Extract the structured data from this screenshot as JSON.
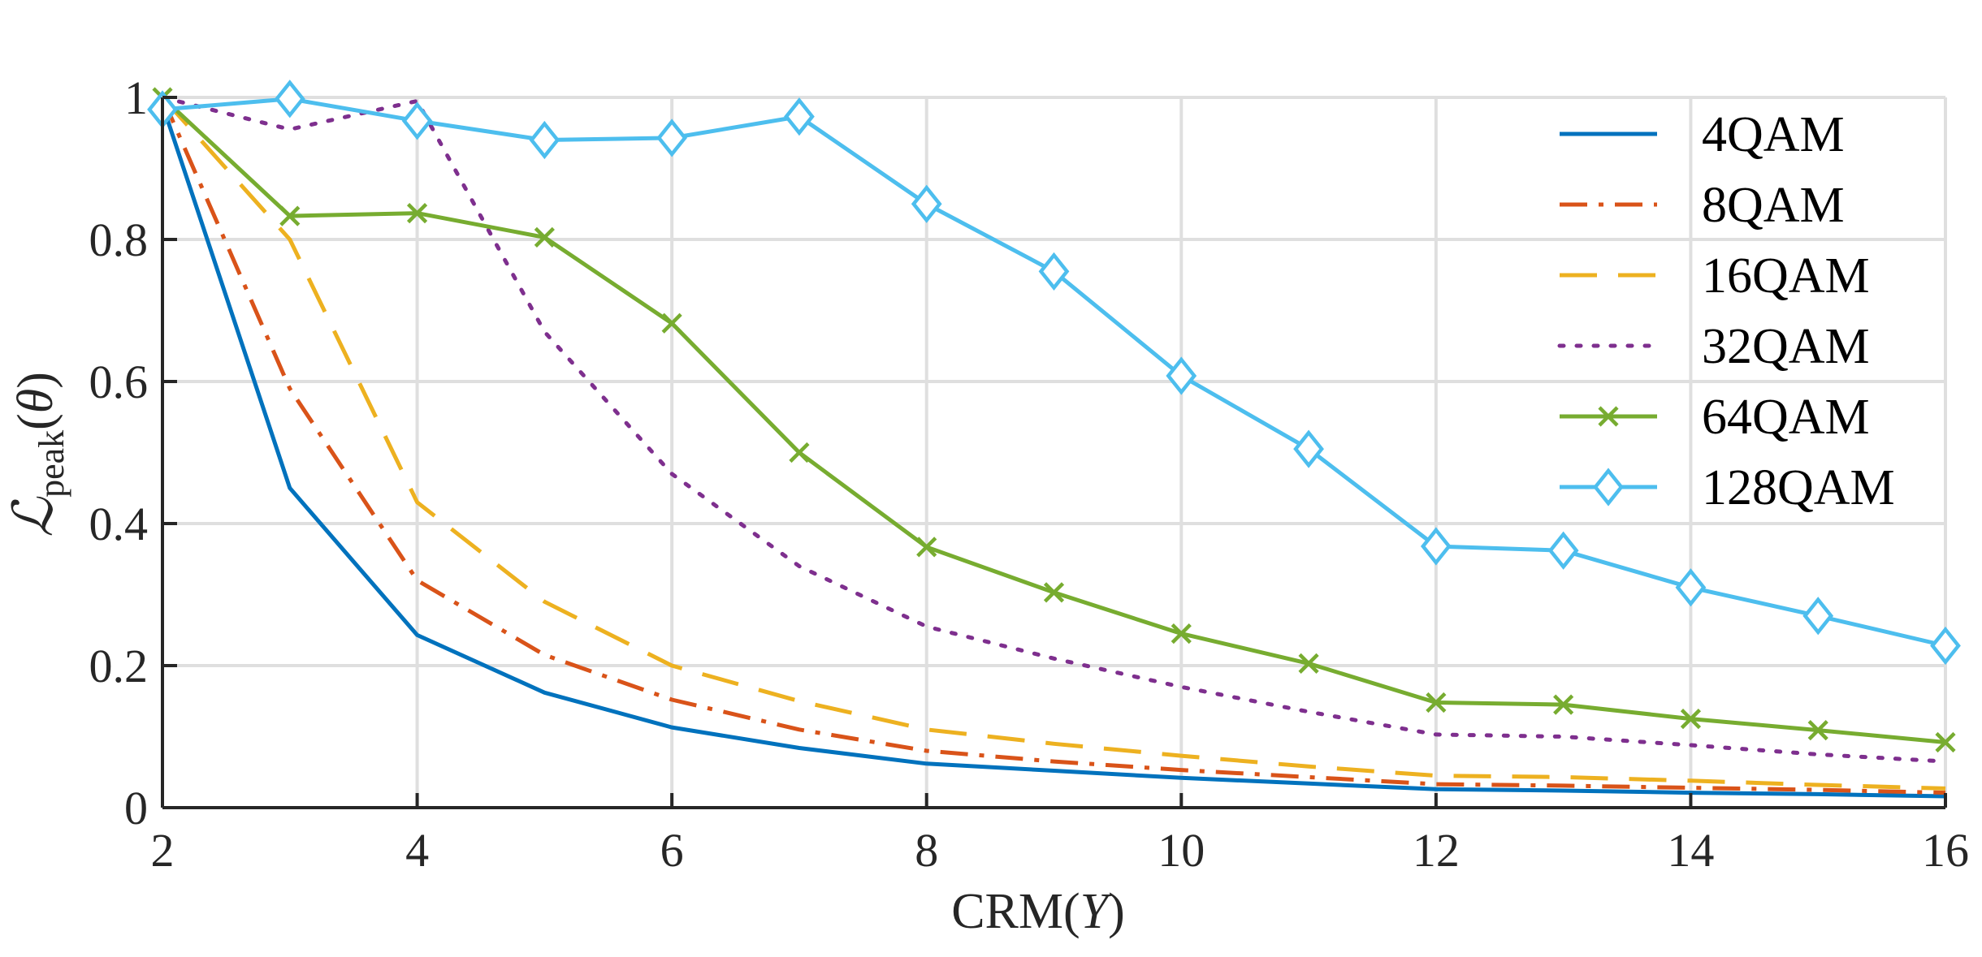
{
  "chart_data": {
    "type": "line",
    "title": "",
    "xlabel": {
      "main": "CRM(",
      "var": "Y",
      "close": ")"
    },
    "ylabel": {
      "symbol": "ℒ",
      "sub": "peak",
      "open": "(",
      "var": "θ",
      "close": ")"
    },
    "xlim": [
      2,
      16
    ],
    "ylim": [
      0,
      1
    ],
    "xticks": [
      2,
      4,
      6,
      8,
      10,
      12,
      14,
      16
    ],
    "yticks": [
      0,
      0.2,
      0.4,
      0.6,
      0.8,
      1
    ],
    "ytick_labels": [
      "0",
      "0.2",
      "0.4",
      "0.6",
      "0.8",
      "1"
    ],
    "grid": true,
    "legend_position": "top-right",
    "x": [
      2,
      3,
      4,
      5,
      6,
      7,
      8,
      9,
      10,
      11,
      12,
      13,
      14,
      15,
      16
    ],
    "series": [
      {
        "name": "4QAM",
        "color": "#0072BD",
        "style": "solid",
        "marker": "none",
        "values": [
          0.99,
          0.45,
          0.243,
          0.162,
          0.113,
          0.084,
          0.062,
          0.052,
          0.042,
          0.034,
          0.026,
          0.024,
          0.021,
          0.019,
          0.016
        ]
      },
      {
        "name": "8QAM",
        "color": "#D95319",
        "style": "dashdot",
        "marker": "none",
        "values": [
          1.0,
          0.59,
          0.32,
          0.215,
          0.152,
          0.11,
          0.08,
          0.065,
          0.053,
          0.043,
          0.033,
          0.031,
          0.028,
          0.025,
          0.021
        ]
      },
      {
        "name": "16QAM",
        "color": "#EDB120",
        "style": "dashed",
        "marker": "none",
        "values": [
          1.0,
          0.8,
          0.43,
          0.29,
          0.2,
          0.15,
          0.11,
          0.09,
          0.073,
          0.058,
          0.045,
          0.043,
          0.038,
          0.032,
          0.027
        ]
      },
      {
        "name": "32QAM",
        "color": "#7E2F8E",
        "style": "dotted",
        "marker": "none",
        "values": [
          1.0,
          0.955,
          0.995,
          0.67,
          0.47,
          0.34,
          0.255,
          0.21,
          0.17,
          0.135,
          0.103,
          0.1,
          0.088,
          0.075,
          0.065
        ]
      },
      {
        "name": "64QAM",
        "color": "#77AC30",
        "style": "solid",
        "marker": "x",
        "values": [
          1.0,
          0.833,
          0.837,
          0.803,
          0.682,
          0.5,
          0.367,
          0.303,
          0.245,
          0.203,
          0.148,
          0.145,
          0.125,
          0.109,
          0.092
        ]
      },
      {
        "name": "128QAM",
        "color": "#4DBEEE",
        "style": "solid",
        "marker": "diamond",
        "values": [
          0.983,
          0.998,
          0.967,
          0.94,
          0.943,
          0.973,
          0.85,
          0.755,
          0.608,
          0.505,
          0.368,
          0.362,
          0.31,
          0.27,
          0.228
        ]
      }
    ]
  }
}
